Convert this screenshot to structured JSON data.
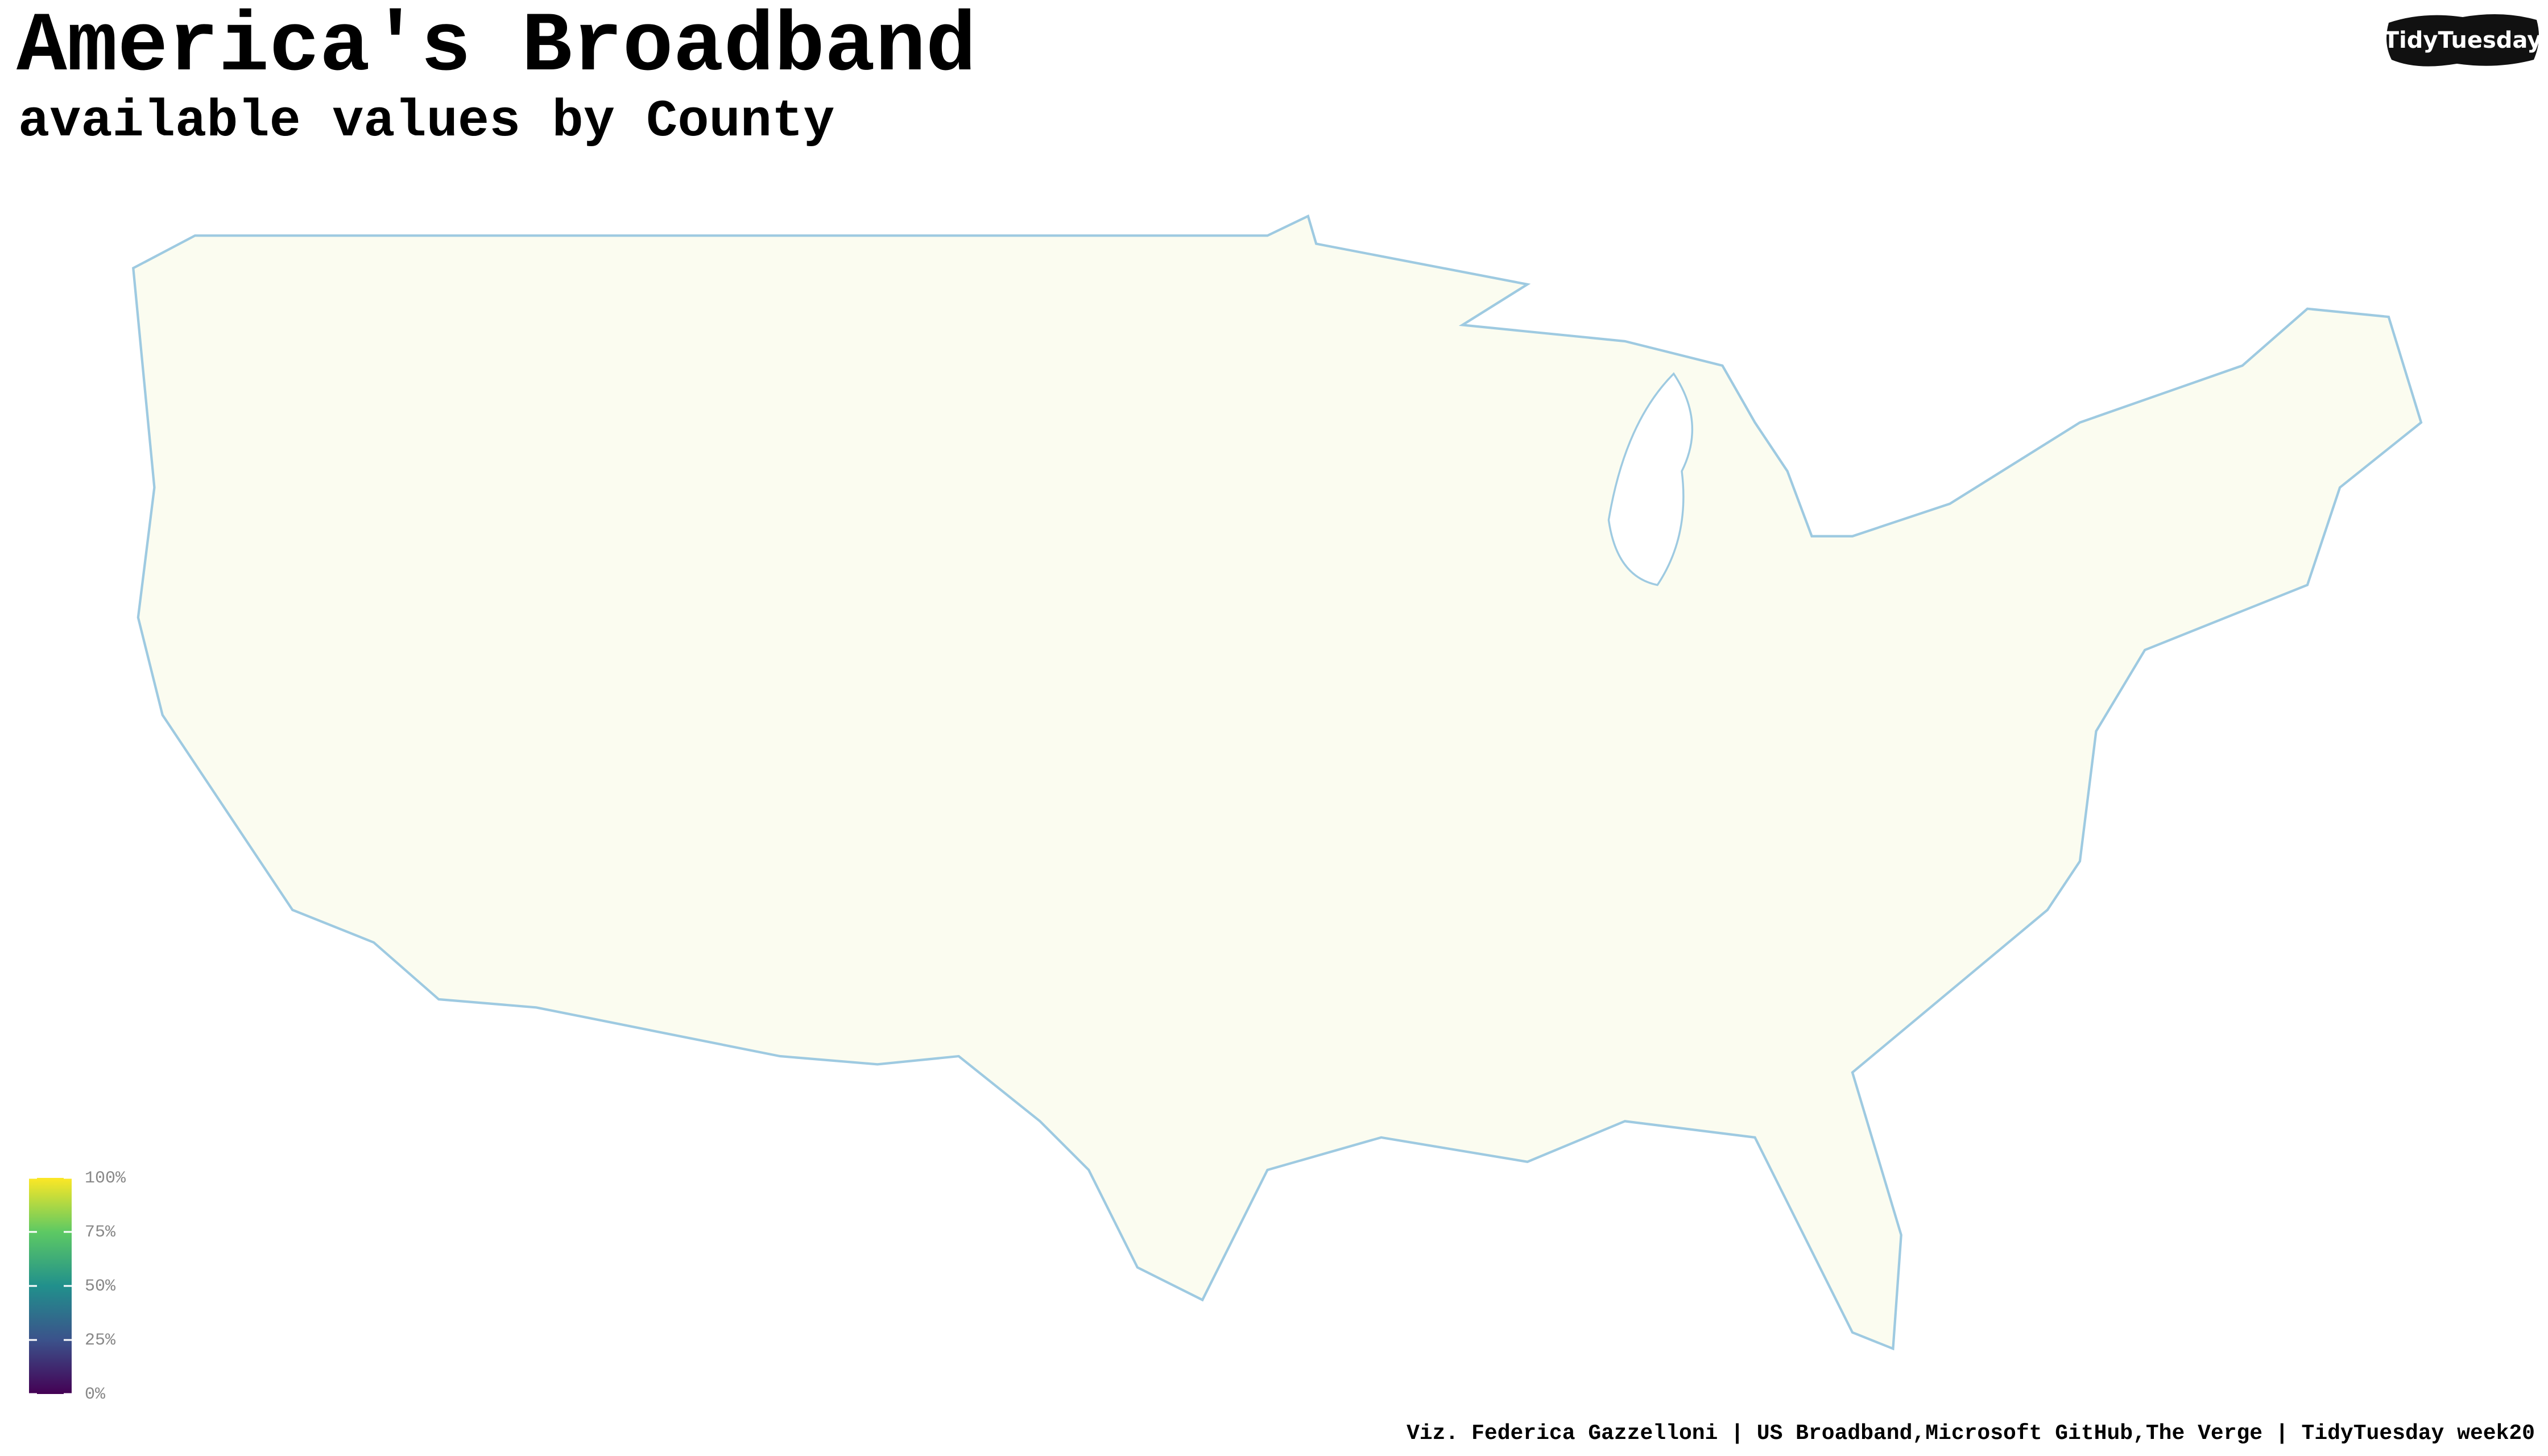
{
  "header": {
    "title": "America's Broadband",
    "subtitle": "available values by County",
    "logo": "TidyTuesday"
  },
  "legend": {
    "colorscale": [
      "#440154",
      "#3b528b",
      "#21908c",
      "#5dc963",
      "#fde725"
    ],
    "lim": [
      0,
      100
    ],
    "ticks": [
      {
        "value": 0,
        "label": "0%"
      },
      {
        "value": 25,
        "label": "25%"
      },
      {
        "value": 50,
        "label": "50%"
      },
      {
        "value": 75,
        "label": "75%"
      },
      {
        "value": 100,
        "label": "100%"
      }
    ]
  },
  "caption": "Viz. Federica Gazzelloni | US Broadband,Microsoft GitHub,The Verge | TidyTuesday week20"
}
